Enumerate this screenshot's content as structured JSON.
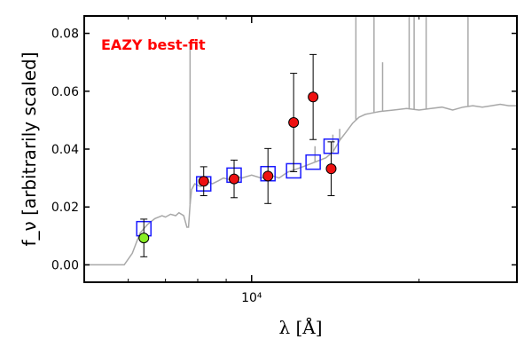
{
  "chart_data": {
    "type": "scatter",
    "title": "",
    "annotation": "EAZY best-fit",
    "xlabel": "λ [Å]",
    "xscale": "log",
    "xlim": [
      5000,
      30000
    ],
    "x_ticks": [
      {
        "value": 10000,
        "label": "10⁴"
      }
    ],
    "ylabel": "f_ν [arbitrarily scaled]",
    "ylim": [
      -0.006,
      0.086
    ],
    "y_ticks": [
      {
        "value": 0.0,
        "label": "0.00"
      },
      {
        "value": 0.02,
        "label": "0.02"
      },
      {
        "value": 0.04,
        "label": "0.04"
      },
      {
        "value": 0.06,
        "label": "0.06"
      },
      {
        "value": 0.08,
        "label": "0.08"
      }
    ],
    "grid": false,
    "colors": {
      "template": "#a8a8a8",
      "model_box": "#1a1aff",
      "obs_point": "#ee1111",
      "upper_point": "#88ee22",
      "annotation": "#ff0000"
    },
    "template_spectrum": [
      [
        5000,
        0.0
      ],
      [
        5600,
        0.0
      ],
      [
        5900,
        0.0
      ],
      [
        6100,
        0.004
      ],
      [
        6300,
        0.011
      ],
      [
        6500,
        0.014
      ],
      [
        6700,
        0.016
      ],
      [
        6900,
        0.017
      ],
      [
        7000,
        0.0165
      ],
      [
        7150,
        0.0175
      ],
      [
        7300,
        0.017
      ],
      [
        7400,
        0.018
      ],
      [
        7550,
        0.017
      ],
      [
        7650,
        0.013
      ],
      [
        7700,
        0.013
      ],
      [
        7750,
        0.021
      ],
      [
        7800,
        0.026
      ],
      [
        7900,
        0.028
      ],
      [
        8100,
        0.027
      ],
      [
        8300,
        0.029
      ],
      [
        8500,
        0.028
      ],
      [
        8700,
        0.029
      ],
      [
        8900,
        0.03
      ],
      [
        9100,
        0.0295
      ],
      [
        9300,
        0.031
      ],
      [
        9600,
        0.03
      ],
      [
        10000,
        0.031
      ],
      [
        10400,
        0.03
      ],
      [
        10800,
        0.031
      ],
      [
        11200,
        0.03
      ],
      [
        11600,
        0.032
      ],
      [
        12000,
        0.033
      ],
      [
        12400,
        0.034
      ],
      [
        12800,
        0.035
      ],
      [
        13200,
        0.036
      ],
      [
        13600,
        0.037
      ],
      [
        14000,
        0.039
      ],
      [
        14400,
        0.043
      ],
      [
        14800,
        0.046
      ],
      [
        15200,
        0.049
      ],
      [
        15600,
        0.051
      ],
      [
        16000,
        0.052
      ],
      [
        16500,
        0.0525
      ],
      [
        17000,
        0.053
      ],
      [
        18000,
        0.0535
      ],
      [
        19000,
        0.054
      ],
      [
        20000,
        0.0535
      ],
      [
        21000,
        0.054
      ],
      [
        22000,
        0.0545
      ],
      [
        23000,
        0.0535
      ],
      [
        24000,
        0.0545
      ],
      [
        25000,
        0.055
      ],
      [
        26000,
        0.0545
      ],
      [
        27000,
        0.055
      ],
      [
        28000,
        0.0555
      ],
      [
        29000,
        0.055
      ],
      [
        30000,
        0.055
      ]
    ],
    "emission_lines": [
      {
        "x": 7750,
        "top": 0.077
      },
      {
        "x": 13000,
        "top": 0.041
      },
      {
        "x": 14000,
        "top": 0.045
      },
      {
        "x": 14400,
        "top": 0.047
      },
      {
        "x": 15400,
        "top": 0.095
      },
      {
        "x": 16600,
        "top": 0.095
      },
      {
        "x": 17200,
        "top": 0.07
      },
      {
        "x": 19200,
        "top": 0.095
      },
      {
        "x": 19600,
        "top": 0.095
      },
      {
        "x": 20600,
        "top": 0.095
      },
      {
        "x": 24500,
        "top": 0.095
      }
    ],
    "model_fluxes": [
      {
        "x": 6400,
        "y": 0.0125
      },
      {
        "x": 8200,
        "y": 0.028
      },
      {
        "x": 9300,
        "y": 0.031
      },
      {
        "x": 10700,
        "y": 0.0315
      },
      {
        "x": 11900,
        "y": 0.0325
      },
      {
        "x": 12900,
        "y": 0.0355
      },
      {
        "x": 13900,
        "y": 0.041
      }
    ],
    "observed": [
      {
        "x": 6400,
        "y": 0.0093,
        "err_low": 0.0065,
        "err_high": 0.0065,
        "upper": true
      },
      {
        "x": 8200,
        "y": 0.0289,
        "err_low": 0.005,
        "err_high": 0.005
      },
      {
        "x": 9300,
        "y": 0.0297,
        "err_low": 0.0065,
        "err_high": 0.0065
      },
      {
        "x": 10700,
        "y": 0.0307,
        "err_low": 0.0095,
        "err_high": 0.0095
      },
      {
        "x": 11900,
        "y": 0.0492,
        "err_low": 0.017,
        "err_high": 0.017
      },
      {
        "x": 12900,
        "y": 0.058,
        "err_low": 0.0147,
        "err_high": 0.0147
      },
      {
        "x": 13900,
        "y": 0.0332,
        "err_low": 0.0093,
        "err_high": 0.0093
      }
    ]
  }
}
